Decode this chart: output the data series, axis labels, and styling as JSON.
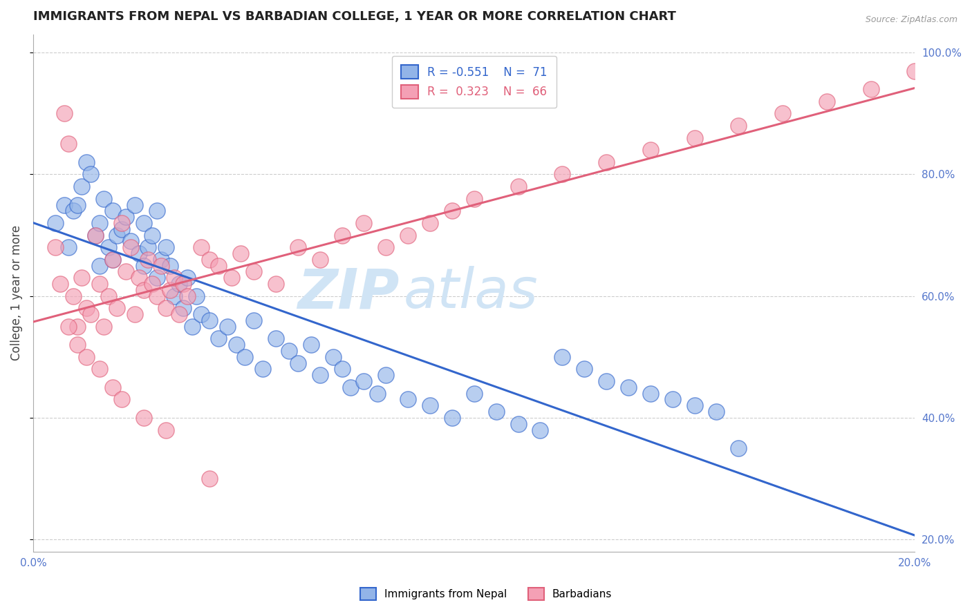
{
  "title": "IMMIGRANTS FROM NEPAL VS BARBADIAN COLLEGE, 1 YEAR OR MORE CORRELATION CHART",
  "source_text": "Source: ZipAtlas.com",
  "xlabel": "",
  "ylabel": "College, 1 year or more",
  "xlim": [
    0.0,
    0.2
  ],
  "ylim": [
    0.18,
    1.03
  ],
  "ytick_vals": [
    0.2,
    0.4,
    0.6,
    0.8,
    1.0
  ],
  "legend_r1": "R = -0.551",
  "legend_n1": "N =  71",
  "legend_r2": "R =  0.323",
  "legend_n2": "N =  66",
  "blue_color": "#92b4e8",
  "pink_color": "#f4a0b5",
  "blue_line_color": "#3366cc",
  "pink_line_color": "#e0607a",
  "watermark_zip": "ZIP",
  "watermark_atlas": "atlas",
  "watermark_color": "#d0e4f5",
  "nepal_dots_x": [
    0.005,
    0.007,
    0.008,
    0.009,
    0.01,
    0.011,
    0.012,
    0.013,
    0.014,
    0.015,
    0.015,
    0.016,
    0.017,
    0.018,
    0.018,
    0.019,
    0.02,
    0.021,
    0.022,
    0.023,
    0.024,
    0.025,
    0.025,
    0.026,
    0.027,
    0.028,
    0.028,
    0.029,
    0.03,
    0.031,
    0.032,
    0.033,
    0.034,
    0.035,
    0.036,
    0.037,
    0.038,
    0.04,
    0.042,
    0.044,
    0.046,
    0.048,
    0.05,
    0.052,
    0.055,
    0.058,
    0.06,
    0.063,
    0.065,
    0.068,
    0.07,
    0.072,
    0.075,
    0.078,
    0.08,
    0.085,
    0.09,
    0.095,
    0.1,
    0.105,
    0.11,
    0.115,
    0.12,
    0.125,
    0.13,
    0.135,
    0.14,
    0.145,
    0.15,
    0.155,
    0.16
  ],
  "nepal_dots_y": [
    0.72,
    0.75,
    0.68,
    0.74,
    0.75,
    0.78,
    0.82,
    0.8,
    0.7,
    0.65,
    0.72,
    0.76,
    0.68,
    0.74,
    0.66,
    0.7,
    0.71,
    0.73,
    0.69,
    0.75,
    0.67,
    0.72,
    0.65,
    0.68,
    0.7,
    0.74,
    0.63,
    0.66,
    0.68,
    0.65,
    0.6,
    0.62,
    0.58,
    0.63,
    0.55,
    0.6,
    0.57,
    0.56,
    0.53,
    0.55,
    0.52,
    0.5,
    0.56,
    0.48,
    0.53,
    0.51,
    0.49,
    0.52,
    0.47,
    0.5,
    0.48,
    0.45,
    0.46,
    0.44,
    0.47,
    0.43,
    0.42,
    0.4,
    0.44,
    0.41,
    0.39,
    0.38,
    0.5,
    0.48,
    0.46,
    0.45,
    0.44,
    0.43,
    0.42,
    0.41,
    0.35
  ],
  "barbadian_dots_x": [
    0.005,
    0.006,
    0.007,
    0.008,
    0.009,
    0.01,
    0.011,
    0.012,
    0.013,
    0.014,
    0.015,
    0.016,
    0.017,
    0.018,
    0.019,
    0.02,
    0.021,
    0.022,
    0.023,
    0.024,
    0.025,
    0.026,
    0.027,
    0.028,
    0.029,
    0.03,
    0.031,
    0.032,
    0.033,
    0.034,
    0.035,
    0.038,
    0.04,
    0.042,
    0.045,
    0.047,
    0.05,
    0.055,
    0.06,
    0.065,
    0.07,
    0.075,
    0.08,
    0.085,
    0.09,
    0.095,
    0.1,
    0.11,
    0.12,
    0.13,
    0.14,
    0.15,
    0.16,
    0.17,
    0.18,
    0.19,
    0.2,
    0.008,
    0.01,
    0.012,
    0.015,
    0.018,
    0.02,
    0.025,
    0.03,
    0.04
  ],
  "barbadian_dots_y": [
    0.68,
    0.62,
    0.9,
    0.85,
    0.6,
    0.55,
    0.63,
    0.58,
    0.57,
    0.7,
    0.62,
    0.55,
    0.6,
    0.66,
    0.58,
    0.72,
    0.64,
    0.68,
    0.57,
    0.63,
    0.61,
    0.66,
    0.62,
    0.6,
    0.65,
    0.58,
    0.61,
    0.63,
    0.57,
    0.62,
    0.6,
    0.68,
    0.66,
    0.65,
    0.63,
    0.67,
    0.64,
    0.62,
    0.68,
    0.66,
    0.7,
    0.72,
    0.68,
    0.7,
    0.72,
    0.74,
    0.76,
    0.78,
    0.8,
    0.82,
    0.84,
    0.86,
    0.88,
    0.9,
    0.92,
    0.94,
    0.97,
    0.55,
    0.52,
    0.5,
    0.48,
    0.45,
    0.43,
    0.4,
    0.38,
    0.3
  ]
}
